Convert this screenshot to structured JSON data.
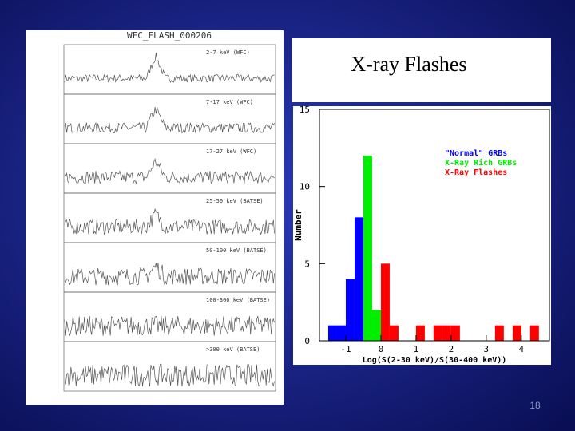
{
  "slide": {
    "title": "X-ray Flashes",
    "page_number": "18"
  },
  "light_curves": {
    "title": "WFC_FLASH_000206",
    "panels": [
      "2-7 keV (WFC)",
      "7-17 keV (WFC)",
      "17-27 keV (WFC)",
      "25-50 keV (BATSE)",
      "50-100 keV (BATSE)",
      "100-300 keV (BATSE)",
      ">300 keV (BATSE)"
    ]
  },
  "chart_data": {
    "type": "histogram",
    "xlabel": "Log(S(2-30 keV)/S(30-400 keV))",
    "ylabel": "Number",
    "bins": [
      -1.5,
      -1.25,
      -1,
      -0.75,
      -0.5,
      -0.25,
      0,
      0.25,
      0.5,
      0.75,
      1,
      1.25,
      1.5,
      1.75,
      2,
      2.25,
      2.5,
      2.75,
      3,
      3.25,
      3.5,
      3.75,
      4,
      4.25,
      4.5
    ],
    "series": [
      {
        "name": "\"Normal\" GRBs",
        "color": "#0000ff",
        "values": [
          1,
          1,
          4,
          8,
          0,
          0,
          0,
          0,
          0,
          0,
          0,
          0,
          0,
          0,
          0,
          0,
          0,
          0,
          0,
          0,
          0,
          0,
          0,
          0
        ]
      },
      {
        "name": "X-Ray Rich GRBs",
        "color": "#00ee00",
        "values": [
          0,
          0,
          0,
          0,
          12,
          2,
          0,
          0,
          0,
          0,
          0,
          0,
          0,
          0,
          0,
          0,
          0,
          0,
          0,
          0,
          0,
          0,
          0,
          0
        ]
      },
      {
        "name": "X-Ray Flashes",
        "color": "#ff0000",
        "values": [
          0,
          0,
          0,
          0,
          0,
          0,
          5,
          1,
          0,
          0,
          1,
          0,
          1,
          1,
          1,
          0,
          0,
          0,
          0,
          1,
          0,
          1,
          0,
          1
        ]
      }
    ],
    "xlim": [
      -1.75,
      4.8
    ],
    "ylim": [
      0,
      15
    ],
    "xticks": [
      -1,
      0,
      1,
      2,
      3,
      4
    ],
    "yticks": [
      0,
      5,
      10,
      15
    ],
    "legend": "upper right"
  }
}
